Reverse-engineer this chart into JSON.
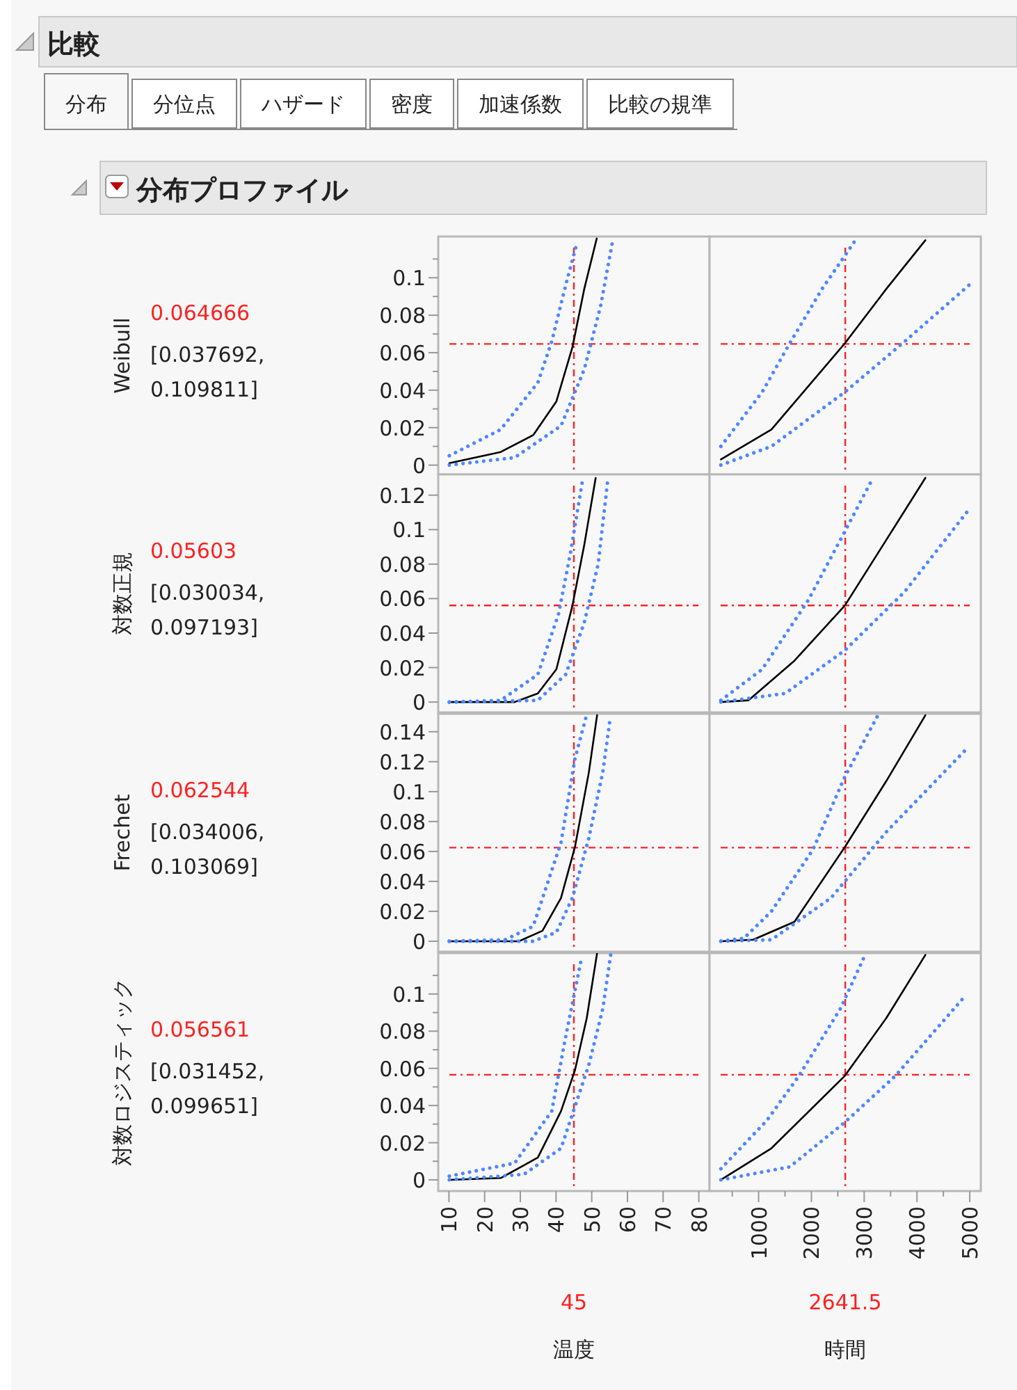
{
  "chart_data": [
    {
      "type": "other",
      "title": "比較",
      "subtitle": "分布プロファイル",
      "annotations": [
        "分布",
        "分位点",
        "ハザード",
        "密度",
        "加速係数",
        "比較の規準"
      ]
    },
    {
      "type": "line",
      "ylabel": "Weibull",
      "annotations": [
        "[0.037692, 0.109811]"
      ],
      "tick_labels": "y",
      "xlim": [
        7,
        83
      ],
      "ylim": [
        -0.005,
        0.122
      ],
      "yticks": [
        0,
        {
          "value": 0.01,
          "label": null
        },
        0.02,
        {
          "value": 0.03,
          "label": null
        },
        0.04,
        {
          "value": 0.05,
          "label": null
        },
        0.06,
        {
          "value": 0.07,
          "label": null
        },
        0.08,
        {
          "value": 0.09,
          "label": null
        },
        0.1,
        {
          "value": 0.11,
          "label": null
        }
      ],
      "ref_lines": [
        {
          "axis": "x",
          "value": 45,
          "color": "#ff2020",
          "line_style": "dashed"
        },
        {
          "axis": "y",
          "value": 0.064666,
          "label": "0.064666",
          "color": "#ff2020",
          "line_style": "dashed"
        }
      ],
      "series": [
        {
          "color": "#000000",
          "line_style": "solid",
          "x": [
            10.1,
            24.5,
            33.6,
            40.1,
            44.6,
            47.9,
            51.4
          ],
          "values": [
            0.001,
            0.007,
            0.016,
            0.034,
            0.063,
            0.094,
            0.121
          ]
        },
        {
          "color": "#4d88ff",
          "line_style": "dotted",
          "x": [
            10.1,
            24.5,
            34.9,
            38.8,
            42.7,
            45.5
          ],
          "values": [
            0.005,
            0.019,
            0.044,
            0.066,
            0.096,
            0.116
          ]
        },
        {
          "color": "#4d88ff",
          "line_style": "dotted",
          "x": [
            10.1,
            28.4,
            41.4,
            47.9,
            52.5,
            55.7
          ],
          "values": [
            0,
            0.004,
            0.021,
            0.051,
            0.085,
            0.118
          ]
        }
      ]
    },
    {
      "type": "line",
      "tick_labels": false,
      "xlim": [
        70,
        5210
      ],
      "ylim": [
        -0.005,
        0.122
      ],
      "ref_lines": [
        {
          "axis": "x",
          "value": 2641.5,
          "color": "#ff2020",
          "line_style": "dashed"
        },
        {
          "axis": "y",
          "value": 0.064666,
          "color": "#ff2020",
          "line_style": "dashed"
        }
      ],
      "series": [
        {
          "color": "#000000",
          "line_style": "solid",
          "x": [
            285,
            1243,
            2634,
            3418,
            4159
          ],
          "values": [
            0.003,
            0.019,
            0.065,
            0.094,
            0.12
          ]
        },
        {
          "color": "#4d88ff",
          "line_style": "dotted",
          "x": [
            285,
            1068,
            1590,
            2201,
            2809
          ],
          "values": [
            0.01,
            0.039,
            0.065,
            0.094,
            0.119
          ]
        },
        {
          "color": "#4d88ff",
          "line_style": "dotted",
          "x": [
            285,
            1243,
            2634,
            3768,
            4984
          ],
          "values": [
            0,
            0.01,
            0.039,
            0.066,
            0.096
          ]
        }
      ]
    },
    {
      "type": "line",
      "ylabel": "対数正規",
      "annotations": [
        "[0.030034, 0.097193]"
      ],
      "tick_labels": "y",
      "xlim": [
        7,
        83
      ],
      "ylim": [
        -0.006,
        0.132
      ],
      "yticks": [
        0,
        0.02,
        0.04,
        0.06,
        0.08,
        0.1,
        0.12
      ],
      "ref_lines": [
        {
          "axis": "x",
          "value": 45,
          "color": "#ff2020",
          "line_style": "dashed"
        },
        {
          "axis": "y",
          "value": 0.05603,
          "label": "0.05603",
          "color": "#ff2020",
          "line_style": "dashed"
        }
      ],
      "series": [
        {
          "color": "#000000",
          "line_style": "solid",
          "x": [
            10.1,
            28.4,
            34.9,
            40.1,
            44.6,
            47.9,
            51.1
          ],
          "values": [
            0,
            0,
            0.005,
            0.019,
            0.056,
            0.091,
            0.13
          ]
        },
        {
          "color": "#4d88ff",
          "line_style": "dotted",
          "x": [
            10.1,
            24.5,
            34.9,
            40.7,
            44,
            47.3
          ],
          "values": [
            0,
            0.001,
            0.016,
            0.051,
            0.086,
            0.127
          ]
        },
        {
          "color": "#4d88ff",
          "line_style": "dotted",
          "x": [
            10.1,
            34.9,
            42.7,
            47.9,
            51.8,
            54.4
          ],
          "values": [
            0,
            0.001,
            0.016,
            0.046,
            0.08,
            0.127
          ]
        }
      ]
    },
    {
      "type": "line",
      "tick_labels": false,
      "xlim": [
        70,
        5210
      ],
      "ylim": [
        -0.006,
        0.132
      ],
      "ref_lines": [
        {
          "axis": "x",
          "value": 2641.5,
          "color": "#ff2020",
          "line_style": "dashed"
        },
        {
          "axis": "y",
          "value": 0.05603,
          "color": "#ff2020",
          "line_style": "dashed"
        }
      ],
      "series": [
        {
          "color": "#000000",
          "line_style": "solid",
          "x": [
            285,
            807,
            1679,
            2634,
            3418,
            4159
          ],
          "values": [
            0,
            0.001,
            0.024,
            0.056,
            0.094,
            0.13
          ]
        },
        {
          "color": "#4d88ff",
          "line_style": "dotted",
          "x": [
            285,
            1068,
            1940,
            2634,
            3115
          ],
          "values": [
            0.001,
            0.019,
            0.059,
            0.099,
            0.127
          ]
        },
        {
          "color": "#4d88ff",
          "line_style": "dotted",
          "x": [
            285,
            1504,
            2634,
            3768,
            4942
          ],
          "values": [
            0,
            0.005,
            0.03,
            0.064,
            0.11
          ]
        }
      ]
    },
    {
      "type": "line",
      "ylabel": "Frechet",
      "annotations": [
        "[0.034006, 0.103069]"
      ],
      "tick_labels": "y",
      "xlim": [
        7,
        83
      ],
      "ylim": [
        -0.007,
        0.152
      ],
      "yticks": [
        0,
        0.02,
        0.04,
        0.06,
        0.08,
        0.1,
        0.12,
        0.14
      ],
      "ref_lines": [
        {
          "axis": "x",
          "value": 45,
          "color": "#ff2020",
          "line_style": "dashed"
        },
        {
          "axis": "y",
          "value": 0.062544,
          "label": "0.062544",
          "color": "#ff2020",
          "line_style": "dashed"
        }
      ],
      "series": [
        {
          "color": "#000000",
          "line_style": "solid",
          "x": [
            10.1,
            29.6,
            36.2,
            41.4,
            45.3,
            49.2,
            51.5
          ],
          "values": [
            0,
            0,
            0.007,
            0.029,
            0.063,
            0.113,
            0.151
          ]
        },
        {
          "color": "#4d88ff",
          "line_style": "dotted",
          "x": [
            10.1,
            25.7,
            33.6,
            41.4,
            45.3,
            48.3
          ],
          "values": [
            0,
            0.001,
            0.01,
            0.066,
            0.122,
            0.149
          ]
        },
        {
          "color": "#4d88ff",
          "line_style": "dotted",
          "x": [
            10.1,
            33.6,
            40.1,
            44.6,
            49.2,
            53.1,
            55
          ],
          "values": [
            0,
            0,
            0.006,
            0.029,
            0.069,
            0.113,
            0.146
          ]
        }
      ]
    },
    {
      "type": "line",
      "tick_labels": false,
      "xlim": [
        70,
        5210
      ],
      "ylim": [
        -0.007,
        0.152
      ],
      "ref_lines": [
        {
          "axis": "x",
          "value": 2641.5,
          "color": "#ff2020",
          "line_style": "dashed"
        },
        {
          "axis": "y",
          "value": 0.062544,
          "color": "#ff2020",
          "line_style": "dashed"
        }
      ],
      "series": [
        {
          "color": "#000000",
          "line_style": "solid",
          "x": [
            285,
            896,
            1679,
            2634,
            3418,
            4159
          ],
          "values": [
            0,
            0.001,
            0.013,
            0.063,
            0.107,
            0.151
          ]
        },
        {
          "color": "#4d88ff",
          "line_style": "dotted",
          "x": [
            285,
            721,
            1243,
            2026,
            2634,
            3245
          ],
          "values": [
            0,
            0.002,
            0.02,
            0.061,
            0.11,
            0.15
          ]
        },
        {
          "color": "#4d88ff",
          "line_style": "dotted",
          "x": [
            285,
            1243,
            2373,
            3418,
            4898
          ],
          "values": [
            0,
            0.001,
            0.029,
            0.073,
            0.127
          ]
        }
      ]
    },
    {
      "type": "line",
      "ylabel": "対数ロジスティック",
      "xlabel": "温度",
      "annotations": [
        "[0.031452, 0.099651]"
      ],
      "xlim": [
        7,
        83
      ],
      "xticks": [
        10,
        20,
        30,
        40,
        50,
        60,
        70,
        80
      ],
      "ylim": [
        -0.006,
        0.122
      ],
      "yticks": [
        0,
        {
          "value": 0.01,
          "label": null
        },
        0.02,
        {
          "value": 0.03,
          "label": null
        },
        0.04,
        {
          "value": 0.05,
          "label": null
        },
        0.06,
        {
          "value": 0.07,
          "label": null
        },
        0.08,
        {
          "value": 0.09,
          "label": null
        },
        0.1,
        {
          "value": 0.11,
          "label": null
        }
      ],
      "ref_lines": [
        {
          "axis": "x",
          "value": 45,
          "label": "45",
          "color": "#ff2020",
          "line_style": "dashed"
        },
        {
          "axis": "y",
          "value": 0.056561,
          "label": "0.056561",
          "color": "#ff2020",
          "line_style": "dashed"
        }
      ],
      "series": [
        {
          "color": "#000000",
          "line_style": "solid",
          "x": [
            10.1,
            24.5,
            34.9,
            41.4,
            45.3,
            48.6,
            51.5
          ],
          "values": [
            0,
            0.001,
            0.012,
            0.037,
            0.059,
            0.087,
            0.122
          ]
        },
        {
          "color": "#4d88ff",
          "line_style": "dotted",
          "x": [
            10.1,
            28.4,
            38.8,
            42.7,
            46.9
          ],
          "values": [
            0.002,
            0.009,
            0.037,
            0.077,
            0.117
          ]
        },
        {
          "color": "#4d88ff",
          "line_style": "dotted",
          "x": [
            10.1,
            31,
            41.4,
            49.2,
            53.1,
            55.3
          ],
          "values": [
            0,
            0.003,
            0.017,
            0.062,
            0.092,
            0.121
          ]
        }
      ]
    },
    {
      "type": "line",
      "xlabel": "時間",
      "tick_labels": "x",
      "xlim": [
        70,
        5210
      ],
      "xticks": [
        {
          "value": 500,
          "label": null
        },
        1000,
        {
          "value": 1500,
          "label": null
        },
        2000,
        {
          "value": 2500,
          "label": null
        },
        3000,
        {
          "value": 3500,
          "label": null
        },
        4000,
        {
          "value": 4500,
          "label": null
        },
        5000
      ],
      "ylim": [
        -0.006,
        0.122
      ],
      "ref_lines": [
        {
          "axis": "x",
          "value": 2641.5,
          "label": "2641.5",
          "color": "#ff2020",
          "line_style": "dashed"
        },
        {
          "axis": "y",
          "value": 0.056561,
          "color": "#ff2020",
          "line_style": "dashed"
        }
      ],
      "series": [
        {
          "color": "#000000",
          "line_style": "solid",
          "x": [
            285,
            1243,
            2634,
            3418,
            4159
          ],
          "values": [
            0,
            0.017,
            0.056,
            0.087,
            0.121
          ]
        },
        {
          "color": "#4d88ff",
          "line_style": "dotted",
          "x": [
            285,
            1157,
            1765,
            2547,
            2984
          ],
          "values": [
            0.006,
            0.032,
            0.056,
            0.092,
            0.119
          ]
        },
        {
          "color": "#4d88ff",
          "line_style": "dotted",
          "x": [
            285,
            1590,
            2634,
            3593,
            4854
          ],
          "values": [
            0,
            0.007,
            0.031,
            0.056,
            0.097
          ]
        }
      ]
    }
  ]
}
